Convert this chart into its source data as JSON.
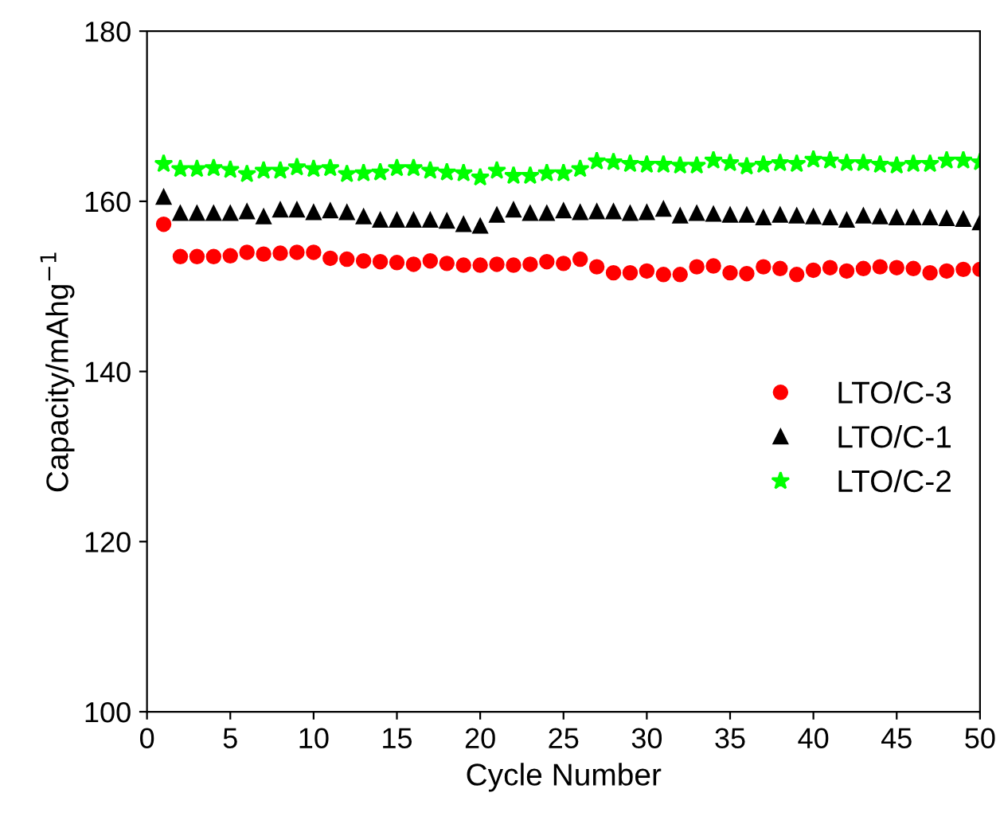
{
  "chart_data": {
    "type": "scatter",
    "xlabel": "Cycle Number",
    "ylabel": "Capacity/mAhg$^{−1}$",
    "x": [
      1,
      2,
      3,
      4,
      5,
      6,
      7,
      8,
      9,
      10,
      11,
      12,
      13,
      14,
      15,
      16,
      17,
      18,
      19,
      20,
      21,
      22,
      23,
      24,
      25,
      26,
      27,
      28,
      29,
      30,
      31,
      32,
      33,
      34,
      35,
      36,
      37,
      38,
      39,
      40,
      41,
      42,
      43,
      44,
      45,
      46,
      47,
      48,
      49,
      50
    ],
    "series": [
      {
        "name": "LTO/C-3",
        "color": "#ff0000",
        "marker": "circle",
        "values": [
          157.3,
          153.5,
          153.5,
          153.5,
          153.6,
          154,
          153.8,
          153.9,
          154,
          154,
          153.3,
          153.2,
          153,
          152.9,
          152.8,
          152.6,
          153,
          152.7,
          152.5,
          152.5,
          152.6,
          152.5,
          152.6,
          152.9,
          152.7,
          153.2,
          152.3,
          151.6,
          151.6,
          151.8,
          151.4,
          151.4,
          152.3,
          152.4,
          151.6,
          151.5,
          152.3,
          152.1,
          151.4,
          151.9,
          152.2,
          151.8,
          152.1,
          152.3,
          152.2,
          152.1,
          151.6,
          151.8,
          152,
          152
        ]
      },
      {
        "name": "LTO/C-1",
        "color": "#000000",
        "marker": "triangle",
        "values": [
          160.5,
          158.6,
          158.6,
          158.6,
          158.6,
          158.8,
          158.2,
          159,
          159,
          158.7,
          158.9,
          158.7,
          158.2,
          157.8,
          157.8,
          157.8,
          157.8,
          157.7,
          157.3,
          157.1,
          158.4,
          159,
          158.6,
          158.6,
          158.9,
          158.7,
          158.8,
          158.8,
          158.6,
          158.7,
          159.1,
          158.3,
          158.6,
          158.5,
          158.4,
          158.4,
          158.1,
          158.4,
          158.3,
          158.2,
          158.1,
          157.8,
          158.3,
          158.2,
          158.1,
          158.1,
          158.1,
          158,
          157.9,
          157.5
        ]
      },
      {
        "name": "LTO/C-2",
        "color": "#00ff00",
        "marker": "star",
        "values": [
          164.4,
          163.8,
          163.8,
          163.9,
          163.7,
          163.2,
          163.6,
          163.6,
          164,
          163.8,
          163.9,
          163.2,
          163.3,
          163.4,
          163.9,
          163.9,
          163.6,
          163.4,
          163.3,
          162.8,
          163.6,
          163,
          163,
          163.3,
          163.3,
          163.8,
          164.7,
          164.6,
          164.4,
          164.3,
          164.3,
          164.2,
          164.2,
          164.8,
          164.5,
          164.1,
          164.3,
          164.5,
          164.4,
          164.9,
          164.8,
          164.5,
          164.5,
          164.3,
          164.2,
          164.4,
          164.4,
          164.8,
          164.8,
          164.6
        ]
      }
    ],
    "xlim": [
      0,
      50
    ],
    "xticks": [
      0,
      5,
      10,
      15,
      20,
      25,
      30,
      35,
      40,
      45,
      50
    ],
    "ylim": [
      100,
      180
    ],
    "yticks": [
      100,
      120,
      140,
      160,
      180
    ],
    "legend": "right",
    "grid": false
  }
}
